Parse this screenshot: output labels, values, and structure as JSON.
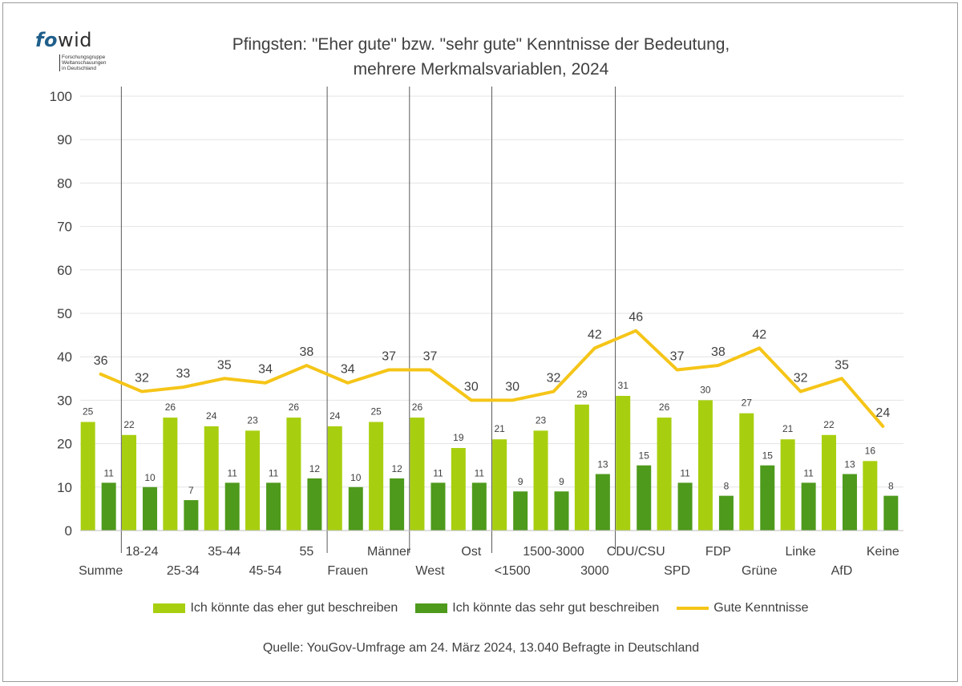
{
  "logo": {
    "fo": "fo",
    "wid": "wid",
    "sub": [
      "Forschungsgruppe",
      "Weltanschauungen",
      "in Deutschland"
    ]
  },
  "title": {
    "line1": "Pfingsten: \"Eher gute\" bzw. \"sehr gute\" Kenntnisse der Bedeutung,",
    "line2": "mehrere Merkmalsvariablen, 2024"
  },
  "source": "Quelle: YouGov-Umfrage am 24. März 2024, 13.040 Befragte in Deutschland",
  "colors": {
    "eher_gut": "#a8cf0f",
    "sehr_gut": "#4e9a1c",
    "line": "#f5c518",
    "grid": "#e3e3e3",
    "separator": "#5a5a5a",
    "text": "#404040"
  },
  "chart_data": {
    "type": "bar",
    "categories": [
      "Summe",
      "18-24",
      "25-34",
      "35-44",
      "45-54",
      "55",
      "Frauen",
      "Männer",
      "West",
      "Ost",
      "<1500",
      "1500-3000",
      "3000",
      "CDU/CSU",
      "SPD",
      "FDP",
      "Grüne",
      "Linke",
      "AfD",
      "Keine"
    ],
    "series": [
      {
        "name": "Ich könnte das eher gut beschreiben",
        "kind": "bar",
        "color": "#a8cf0f",
        "values": [
          25,
          22,
          26,
          24,
          23,
          26,
          24,
          25,
          26,
          19,
          21,
          23,
          29,
          31,
          26,
          30,
          27,
          21,
          22,
          16
        ]
      },
      {
        "name": "Ich könnte das sehr gut beschreiben",
        "kind": "bar",
        "color": "#4e9a1c",
        "values": [
          11,
          10,
          7,
          11,
          11,
          12,
          10,
          12,
          11,
          11,
          9,
          9,
          13,
          15,
          11,
          8,
          15,
          11,
          13,
          8
        ]
      },
      {
        "name": "Gute Kenntnisse",
        "kind": "line",
        "color": "#f5c518",
        "values": [
          36,
          32,
          33,
          35,
          34,
          38,
          34,
          37,
          37,
          30,
          30,
          32,
          42,
          46,
          37,
          38,
          42,
          32,
          35,
          24
        ]
      }
    ],
    "group_separators_after": [
      0,
      5,
      7,
      9,
      12
    ],
    "ylim": [
      0,
      100
    ],
    "yticks": [
      0,
      10,
      20,
      30,
      40,
      50,
      60,
      70,
      80,
      90,
      100
    ],
    "grid": true,
    "legend_position": "bottom",
    "title": "Pfingsten: \"Eher gute\" bzw. \"sehr gute\" Kenntnisse der Bedeutung, mehrere Merkmalsvariablen, 2024",
    "xlabel": "",
    "ylabel": ""
  }
}
